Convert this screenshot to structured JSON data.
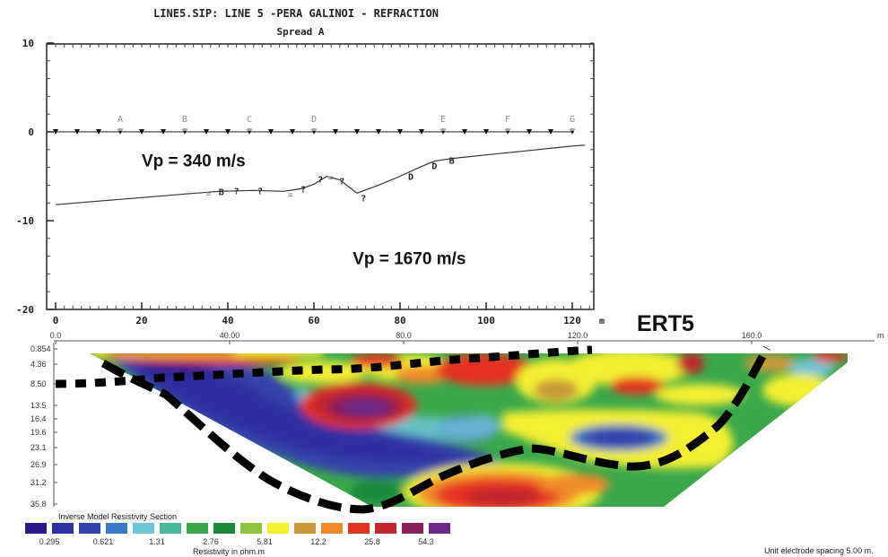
{
  "chart_data": [
    {
      "type": "line",
      "title": "LINE5.SIP: LINE 5 -PERA GALINOI - REFRACTION",
      "subtitle": "Spread A",
      "x_unit": "m",
      "xlim": [
        -2,
        124
      ],
      "ylim": [
        -20,
        10
      ],
      "x_ticks": [
        0,
        20,
        40,
        60,
        80,
        100,
        120
      ],
      "x_tick_labels": [
        "0",
        "20",
        "40",
        "60",
        "80",
        "100",
        "120"
      ],
      "y_ticks": [
        10,
        0,
        -10,
        -20
      ],
      "y_tick_labels": [
        "10",
        "0",
        "-10",
        "-20"
      ],
      "geophones_x": [
        0,
        5,
        10,
        15,
        20,
        25,
        30,
        35,
        40,
        45,
        50,
        55,
        60,
        65,
        70,
        75,
        80,
        85,
        90,
        95,
        100,
        105,
        110,
        115,
        120
      ],
      "shots": [
        {
          "label": "A",
          "x": 15
        },
        {
          "label": "B",
          "x": 30
        },
        {
          "label": "C",
          "x": 45
        },
        {
          "label": "D",
          "x": 60
        },
        {
          "label": "E",
          "x": 90
        },
        {
          "label": "F",
          "x": 105
        },
        {
          "label": "G",
          "x": 120
        }
      ],
      "series": [
        {
          "values_x": [
            0,
            10,
            20,
            30,
            38,
            46,
            53,
            57,
            60,
            63,
            66,
            70,
            75,
            80,
            85,
            88,
            92,
            100,
            110,
            120,
            123
          ],
          "values_y": [
            -8.2,
            -7.8,
            -7.4,
            -7.0,
            -6.7,
            -6.6,
            -6.7,
            -6.4,
            -5.9,
            -5.0,
            -5.4,
            -6.9,
            -6.0,
            -5.0,
            -3.9,
            -3.3,
            -3.0,
            -2.6,
            -2.1,
            -1.6,
            -1.5
          ]
        }
      ],
      "point_markers": [
        {
          "x": 35.5,
          "y": -6.9,
          "text": "="
        },
        {
          "x": 38.5,
          "y": -6.7,
          "text": "B"
        },
        {
          "x": 42,
          "y": -6.6,
          "text": "?"
        },
        {
          "x": 47.5,
          "y": -6.6,
          "text": "?"
        },
        {
          "x": 54.5,
          "y": -7.0,
          "text": "="
        },
        {
          "x": 57.5,
          "y": -6.4,
          "text": "?"
        },
        {
          "x": 61.5,
          "y": -5.3,
          "text": "?"
        },
        {
          "x": 63.8,
          "y": -5.1,
          "text": "="
        },
        {
          "x": 66.5,
          "y": -5.5,
          "text": "?"
        },
        {
          "x": 71.5,
          "y": -7.4,
          "text": "?"
        },
        {
          "x": 82.5,
          "y": -5.0,
          "text": "D"
        },
        {
          "x": 88,
          "y": -3.8,
          "text": "D"
        },
        {
          "x": 92,
          "y": -3.2,
          "text": "B"
        }
      ],
      "annotations": [
        {
          "text": "Vp = 340 m/s",
          "x": 20,
          "y": -3.2
        },
        {
          "text": "Vp = 1670 m/s",
          "x": 69,
          "y": -14.2
        }
      ]
    },
    {
      "type": "heatmap",
      "title": "ERT5",
      "x_unit": "m",
      "xlim": [
        0,
        185
      ],
      "x_ticks": [
        0,
        40,
        80,
        120,
        160
      ],
      "x_tick_labels": [
        "0.0",
        "40.00",
        "80.0",
        "120.0",
        "160.0"
      ],
      "depth_labels": [
        "0.854",
        "4.36",
        "8.50",
        "13.5",
        "16.4",
        "19.6",
        "23.1",
        "26.9",
        "31.2",
        "35.8"
      ],
      "colorbar_title": "Inverse Model Resistivity Section",
      "colorbar_unit_label": "Resistivity in ohm.m",
      "colorbar_colors": [
        "#2b1a8c",
        "#2e2fa0",
        "#3442ab",
        "#3a79c8",
        "#6fc4d8",
        "#4ab89a",
        "#3aa84b",
        "#1f8a3c",
        "#8cc63e",
        "#f4ef30",
        "#c89838",
        "#f08a2a",
        "#e53323",
        "#c1272d",
        "#861f5a",
        "#6e2a8a"
      ],
      "colorbar_tick_labels": [
        "0.295",
        "0.621",
        "1.31",
        "2.76",
        "5.81",
        "12.2",
        "25.8",
        "54.3"
      ],
      "footnote": "Unit electrode spacing 5.00 m.",
      "m_label": "m"
    }
  ]
}
